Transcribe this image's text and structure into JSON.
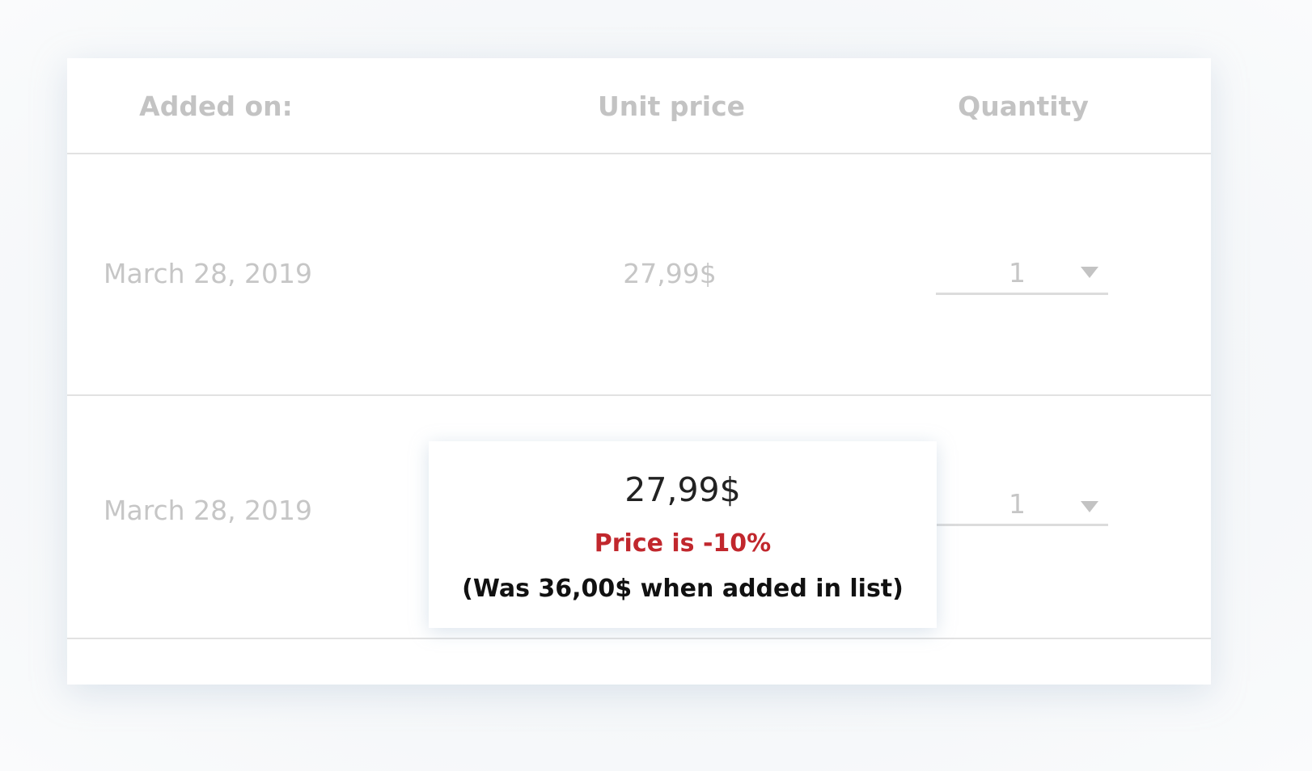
{
  "table": {
    "headers": {
      "added_on": "Added on:",
      "unit_price": "Unit price",
      "quantity": "Quantity"
    },
    "rows": [
      {
        "date": "March 28, 2019",
        "unit_price": "27,99$",
        "quantity": "1"
      },
      {
        "date": "March 28, 2019",
        "unit_price": "27,99$",
        "quantity": "1"
      }
    ]
  },
  "tooltip": {
    "price": "27,99$",
    "discount": "Price is -10%",
    "original": "(Was 36,00$ when added in list)"
  },
  "colors": {
    "discount": "#c1272d",
    "muted_text": "#c6c6c6"
  }
}
